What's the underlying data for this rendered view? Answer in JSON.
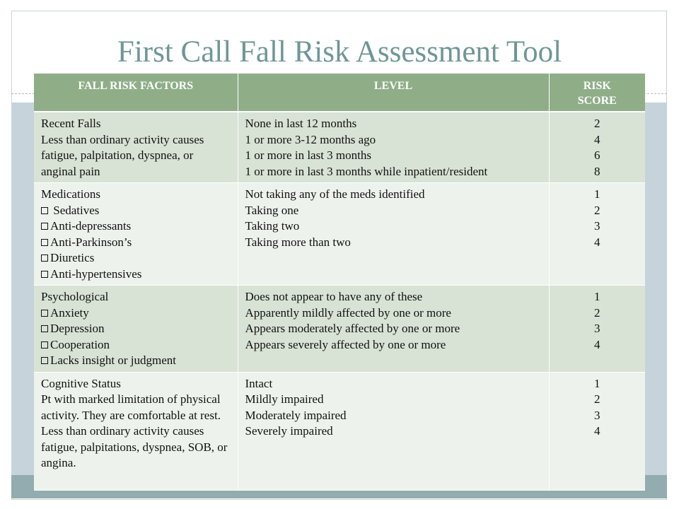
{
  "slide": {
    "title": "First Call Fall Risk Assessment Tool",
    "colors": {
      "title": "#6f9696",
      "header_bg": "#8fae88",
      "row_odd": "#d8e2d5",
      "row_even": "#edf2ec",
      "band": "#c7d3da",
      "band_dark": "#92acb0"
    }
  },
  "table": {
    "headers": {
      "factors": "FALL RISK FACTORS",
      "level": "LEVEL",
      "score": "RISK SCORE"
    },
    "rows": [
      {
        "factor_title": "Recent Falls",
        "factor_desc": "Less than ordinary activity causes fatigue, palpitation, dyspnea, or anginal pain",
        "factor_items": [],
        "levels": [
          "None in last 12 months",
          "1 or more 3-12 months ago",
          "1 or more in last 3 months",
          "1 or more in last 3 months while inpatient/resident"
        ],
        "scores": [
          "2",
          "4",
          "6",
          "8"
        ]
      },
      {
        "factor_title": "Medications",
        "factor_desc": "",
        "factor_items": [
          " Sedatives",
          "Anti-depressants",
          "Anti-Parkinson’s",
          "Diuretics",
          "Anti-hypertensives"
        ],
        "levels": [
          "Not taking any of the meds identified",
          "Taking one",
          "Taking two",
          "Taking more than two"
        ],
        "scores": [
          "1",
          "2",
          "3",
          "4"
        ]
      },
      {
        "factor_title": "Psychological",
        "factor_desc": "",
        "factor_items": [
          "Anxiety",
          "Depression",
          "Cooperation",
          "Lacks insight or judgment"
        ],
        "levels": [
          "Does not appear to have any of these",
          "Apparently mildly affected by one or more",
          "Appears moderately affected by one or more",
          "Appears severely affected by one or more"
        ],
        "scores": [
          "1",
          "2",
          "3",
          "4"
        ]
      },
      {
        "factor_title": "Cognitive Status",
        "factor_desc": "Pt with marked limitation of physical activity. They are comfortable at rest. Less than ordinary activity causes fatigue, palpitations, dyspnea, SOB, or angina.",
        "factor_items": [],
        "levels": [
          "Intact",
          "Mildly impaired",
          "Moderately impaired",
          "Severely impaired"
        ],
        "scores": [
          "1",
          "2",
          "3",
          "4"
        ]
      }
    ]
  }
}
